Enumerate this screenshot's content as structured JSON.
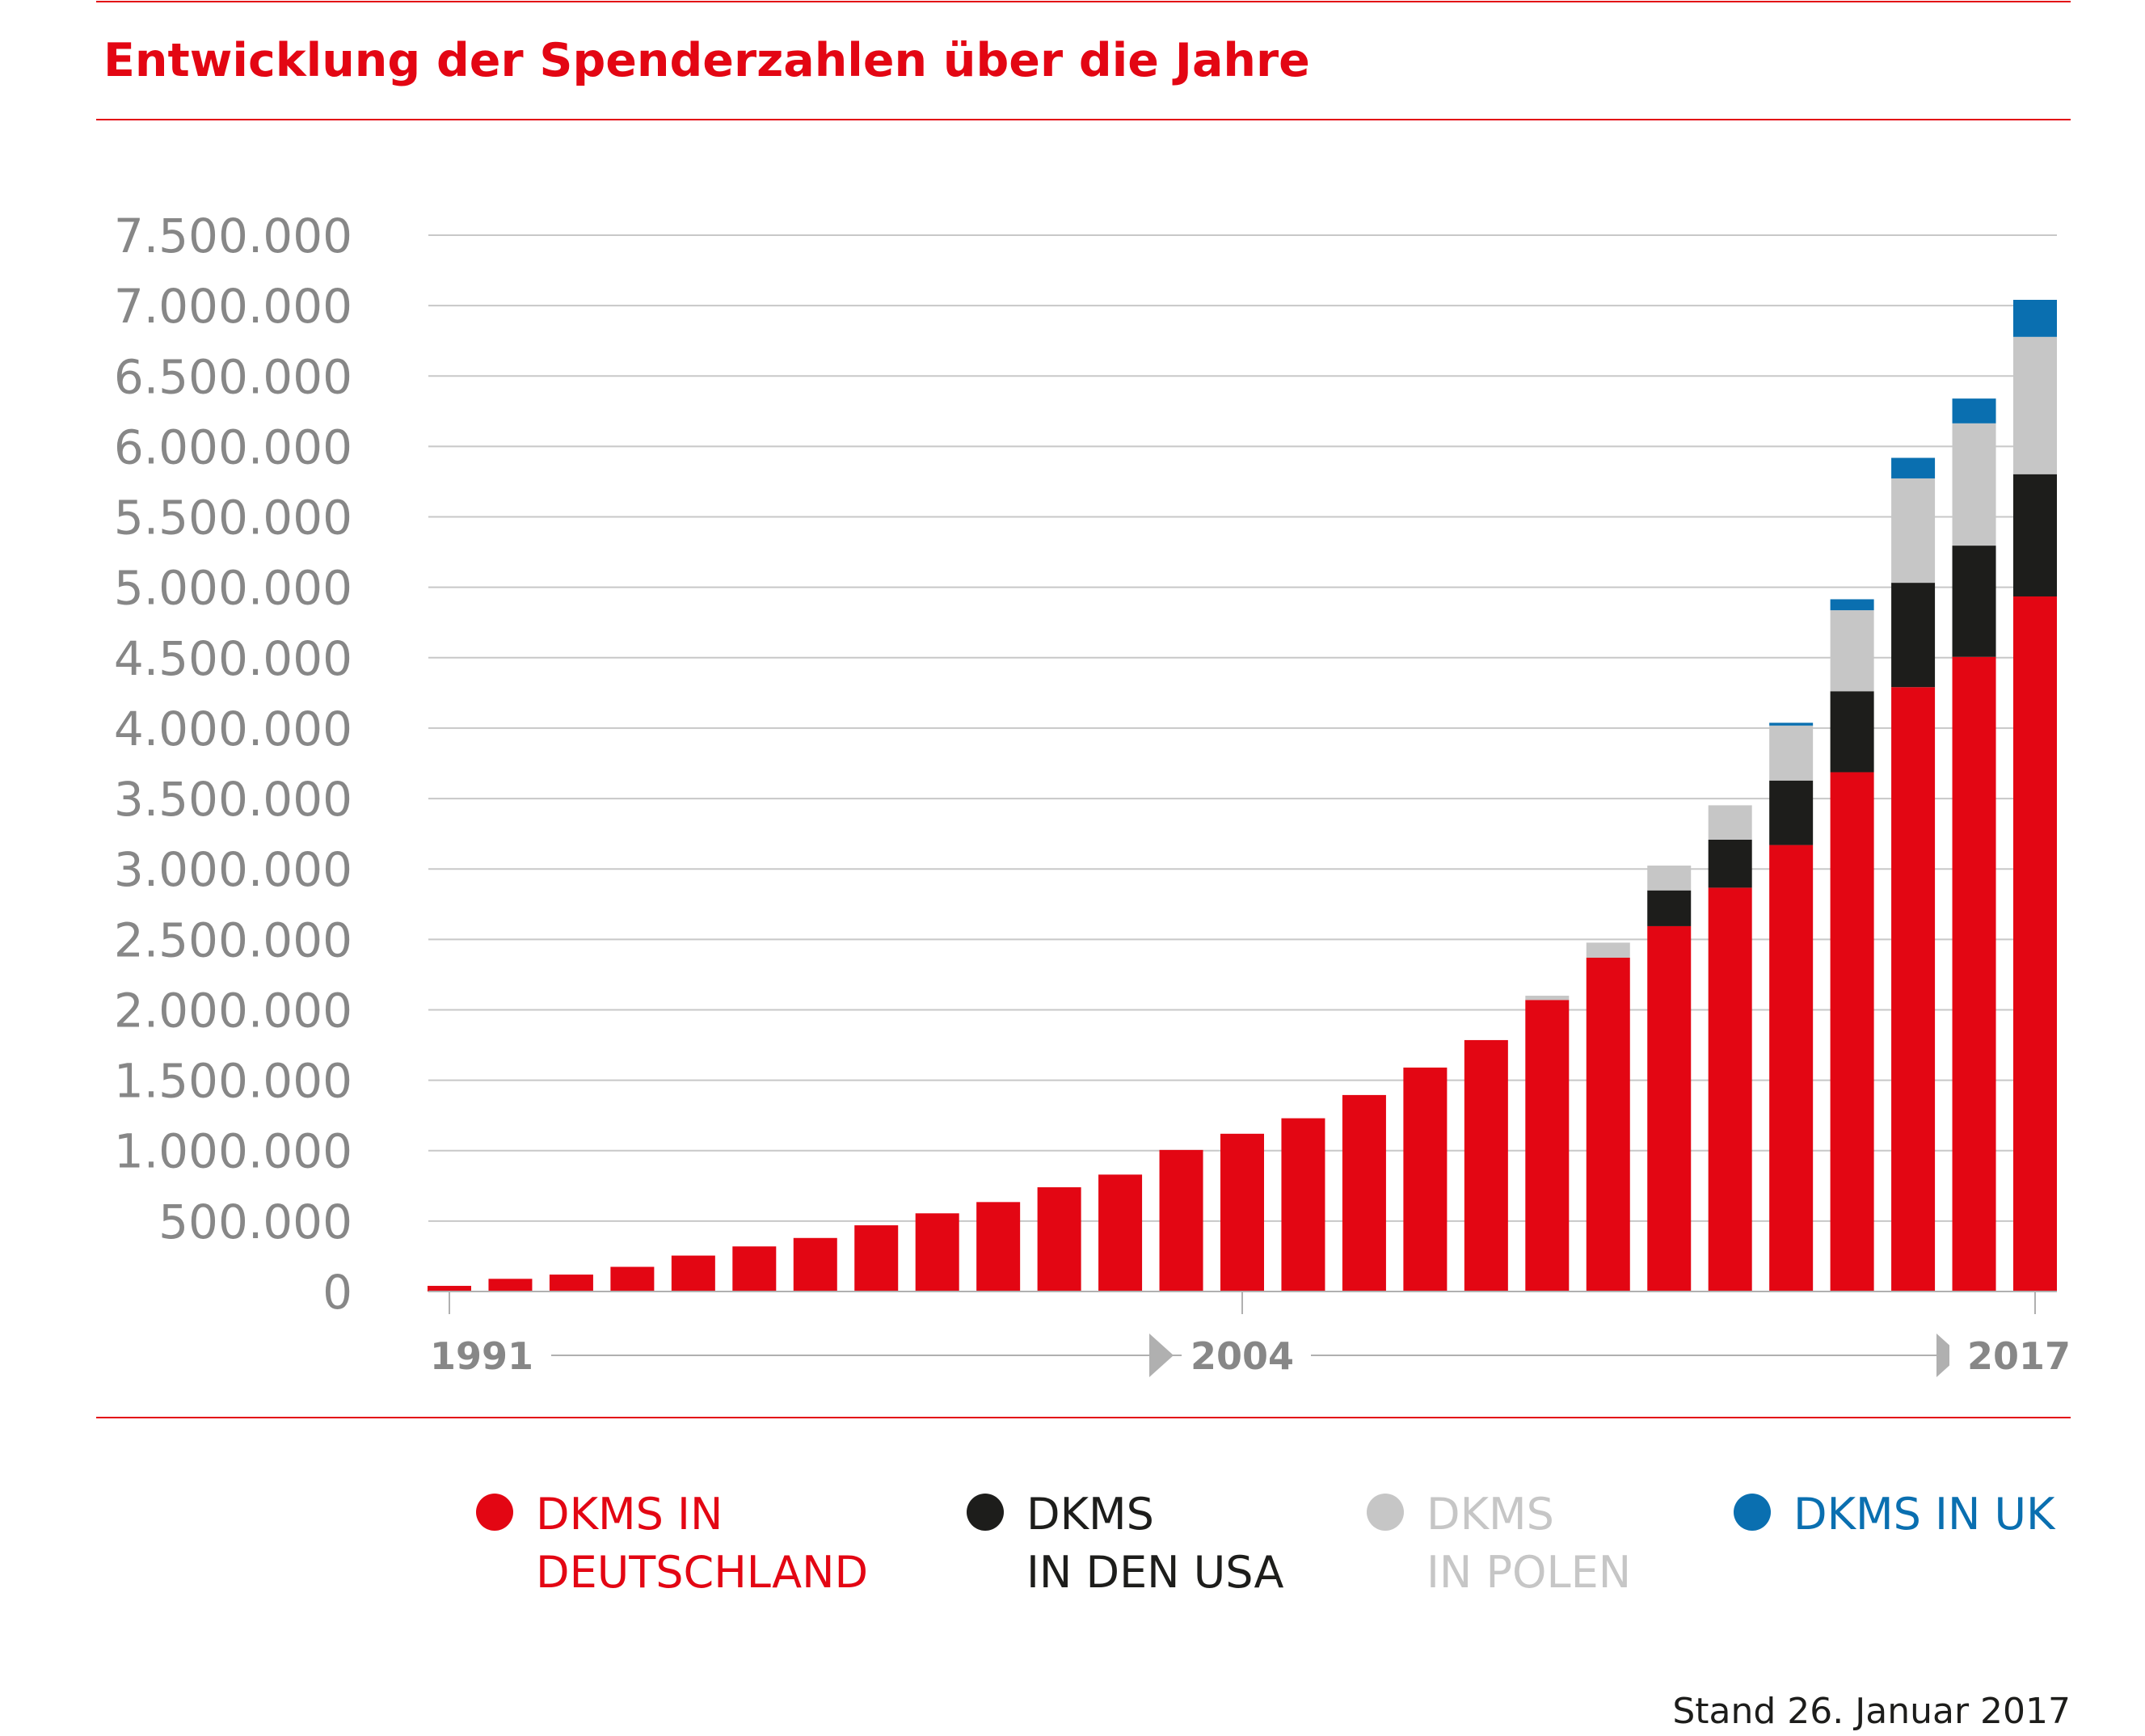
{
  "chart_data": {
    "type": "stacked_bar",
    "title": "Entwicklung der Spenderzahlen über die Jahre",
    "footnote": "Stand 26. Januar 2017",
    "categories": [
      "1991",
      null,
      null,
      null,
      null,
      null,
      null,
      null,
      null,
      null,
      null,
      null,
      null,
      "2004",
      null,
      null,
      null,
      null,
      null,
      null,
      null,
      null,
      null,
      null,
      null,
      null,
      "2017"
    ],
    "series": [
      {
        "name": "DKMS IN\nDEUTSCHLAND",
        "color": "#e30613",
        "values": [
          40000,
          90000,
          120000,
          175000,
          255000,
          320000,
          380000,
          470000,
          555000,
          635000,
          740000,
          830000,
          1005000,
          1120000,
          1230000,
          1395000,
          1590000,
          1785000,
          2070000,
          2370000,
          2594000,
          2867000,
          3170000,
          3687000,
          4291000,
          4506000,
          4935000
        ]
      },
      {
        "name": "DKMS\nIN DEN USA",
        "color": "#1d1d1b",
        "values": [
          null,
          null,
          null,
          null,
          null,
          null,
          null,
          null,
          null,
          null,
          null,
          null,
          null,
          null,
          null,
          null,
          null,
          null,
          null,
          null,
          254000,
          341000,
          458000,
          575000,
          741000,
          790000,
          868000
        ]
      },
      {
        "name": "DKMS\nIN POLEN",
        "color": "#c6c6c6",
        "values": [
          null,
          null,
          null,
          null,
          null,
          null,
          null,
          null,
          null,
          null,
          null,
          null,
          null,
          null,
          null,
          null,
          null,
          null,
          30000,
          107000,
          176000,
          244000,
          390000,
          575000,
          741000,
          868000,
          975000
        ]
      },
      {
        "name": "DKMS IN UK",
        "color": "#0a6fb0",
        "values": [
          null,
          null,
          null,
          null,
          null,
          null,
          null,
          null,
          null,
          null,
          null,
          null,
          null,
          null,
          null,
          null,
          null,
          null,
          null,
          null,
          null,
          null,
          20000,
          78000,
          146000,
          176000,
          263000
        ]
      }
    ],
    "ylim": [
      0,
      7500000
    ],
    "yticks": [
      0,
      {
        "value": 500000,
        "label": "500.000"
      },
      {
        "value": 1000000,
        "label": "1.000.000"
      },
      {
        "value": 1500000,
        "label": "1.500.000"
      },
      {
        "value": 2000000,
        "label": "2.000.000"
      },
      {
        "value": 2500000,
        "label": "2.500.000"
      },
      {
        "value": 3000000,
        "label": "3.000.000"
      },
      {
        "value": 3500000,
        "label": "3.500.000"
      },
      {
        "value": 4000000,
        "label": "4.000.000"
      },
      {
        "value": 4500000,
        "label": "4.500.000"
      },
      {
        "value": 5000000,
        "label": "5.000.000"
      },
      {
        "value": 5500000,
        "label": "5.500.000"
      },
      {
        "value": 6000000,
        "label": "6.000.000"
      },
      {
        "value": 6500000,
        "label": "6.500.000"
      },
      {
        "value": 7000000,
        "label": "7.000.000"
      },
      {
        "value": 7500000,
        "label": "7.500.000"
      }
    ],
    "grid": true,
    "legend": "bottom"
  }
}
